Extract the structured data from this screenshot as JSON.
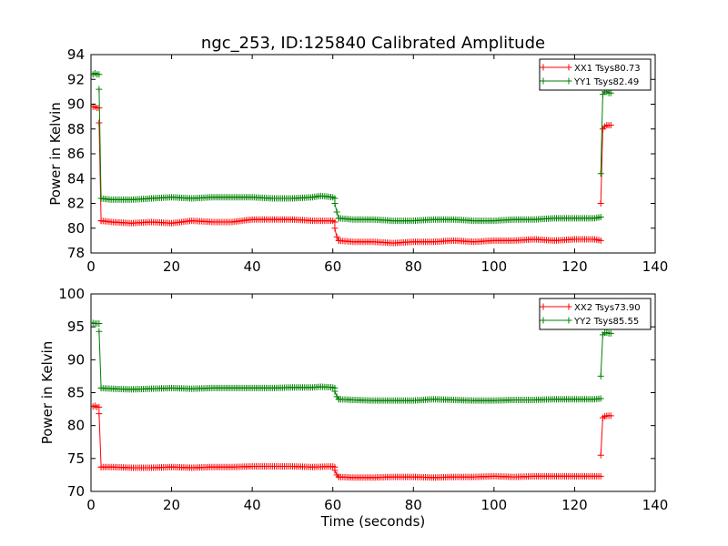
{
  "title": "ngc_253, ID:125840 Calibrated Amplitude",
  "xlabel": "Time (seconds)",
  "chart_data": [
    {
      "type": "line",
      "title": "ngc_253, ID:125840 Calibrated Amplitude",
      "xlabel": "",
      "ylabel": "Power in Kelvin",
      "xlim": [
        0,
        140
      ],
      "ylim": [
        78,
        94
      ],
      "xticks": [
        "0",
        "20",
        "40",
        "60",
        "80",
        "100",
        "120",
        "140"
      ],
      "yticks": [
        "78",
        "80",
        "82",
        "84",
        "86",
        "88",
        "90",
        "92",
        "94"
      ],
      "legend_position": "top-right",
      "grid": false,
      "series": [
        {
          "name": "XX1 Tsys80.73",
          "color": "#ff0000",
          "marker": "+",
          "segments": [
            {
              "x": [
                0.5,
                1.0,
                1.5,
                2.0
              ],
              "y": [
                89.8,
                89.8,
                89.7,
                89.7
              ]
            },
            {
              "x": [
                2.0,
                2.5
              ],
              "y": [
                88.5,
                80.6
              ]
            },
            {
              "x": [
                2.5,
                5,
                10,
                15,
                20,
                25,
                30,
                35,
                40,
                45,
                50,
                55,
                60,
                60.5
              ],
              "y": [
                80.6,
                80.5,
                80.4,
                80.5,
                80.4,
                80.6,
                80.5,
                80.5,
                80.7,
                80.7,
                80.7,
                80.6,
                80.6,
                80.5
              ]
            },
            {
              "x": [
                60.5,
                61.0,
                61.5
              ],
              "y": [
                80.0,
                79.3,
                79.0
              ]
            },
            {
              "x": [
                61.5,
                65,
                70,
                75,
                80,
                85,
                90,
                95,
                100,
                105,
                110,
                115,
                120,
                125,
                126.5
              ],
              "y": [
                79.0,
                78.9,
                78.9,
                78.8,
                78.9,
                78.9,
                79.0,
                78.9,
                79.0,
                79.0,
                79.1,
                79.0,
                79.1,
                79.1,
                79.0
              ]
            },
            {
              "x": [
                126.5,
                127.0,
                127.5,
                128.0,
                128.5,
                129.0
              ],
              "y": [
                82.0,
                88.0,
                88.2,
                88.3,
                88.3,
                88.3
              ]
            }
          ]
        },
        {
          "name": "YY1 Tsys82.49",
          "color": "#008000",
          "marker": "+",
          "segments": [
            {
              "x": [
                0.5,
                1.0,
                1.5,
                2.0
              ],
              "y": [
                92.4,
                92.5,
                92.4,
                92.4
              ]
            },
            {
              "x": [
                2.0,
                2.5
              ],
              "y": [
                91.2,
                82.4
              ]
            },
            {
              "x": [
                2.5,
                5,
                10,
                15,
                20,
                25,
                30,
                35,
                40,
                45,
                50,
                55,
                57,
                60,
                60.5
              ],
              "y": [
                82.4,
                82.3,
                82.3,
                82.4,
                82.5,
                82.4,
                82.5,
                82.5,
                82.5,
                82.4,
                82.4,
                82.5,
                82.6,
                82.5,
                82.4
              ]
            },
            {
              "x": [
                60.5,
                61.0,
                61.5
              ],
              "y": [
                82.0,
                81.3,
                80.8
              ]
            },
            {
              "x": [
                61.5,
                65,
                70,
                75,
                80,
                85,
                90,
                95,
                100,
                105,
                110,
                115,
                120,
                125,
                126.5
              ],
              "y": [
                80.8,
                80.7,
                80.7,
                80.6,
                80.6,
                80.7,
                80.7,
                80.6,
                80.6,
                80.7,
                80.7,
                80.8,
                80.8,
                80.8,
                80.9
              ]
            },
            {
              "x": [
                126.5,
                127.0,
                127.5,
                128.0,
                128.5,
                129.0
              ],
              "y": [
                84.4,
                90.8,
                91.0,
                91.0,
                90.9,
                90.9
              ]
            }
          ]
        }
      ]
    },
    {
      "type": "line",
      "title": "",
      "xlabel": "Time (seconds)",
      "ylabel": "Power in Kelvin",
      "xlim": [
        0,
        140
      ],
      "ylim": [
        70,
        100
      ],
      "xticks": [
        "0",
        "20",
        "40",
        "60",
        "80",
        "100",
        "120",
        "140"
      ],
      "yticks": [
        "70",
        "75",
        "80",
        "85",
        "90",
        "95",
        "100"
      ],
      "legend_position": "top-right",
      "grid": false,
      "series": [
        {
          "name": "XX2 Tsys73.90",
          "color": "#ff0000",
          "marker": "+",
          "segments": [
            {
              "x": [
                0.5,
                1.0,
                1.5,
                2.0
              ],
              "y": [
                82.9,
                83.0,
                82.8,
                82.8
              ]
            },
            {
              "x": [
                2.0,
                2.5
              ],
              "y": [
                81.8,
                73.7
              ]
            },
            {
              "x": [
                2.5,
                5,
                10,
                15,
                20,
                25,
                30,
                35,
                40,
                45,
                50,
                55,
                60,
                60.5
              ],
              "y": [
                73.7,
                73.7,
                73.6,
                73.6,
                73.7,
                73.6,
                73.7,
                73.7,
                73.8,
                73.8,
                73.8,
                73.7,
                73.8,
                73.7
              ]
            },
            {
              "x": [
                60.5,
                61.0,
                61.5
              ],
              "y": [
                73.2,
                72.5,
                72.2
              ]
            },
            {
              "x": [
                61.5,
                65,
                70,
                75,
                80,
                85,
                90,
                95,
                100,
                105,
                110,
                115,
                120,
                125,
                126.5
              ],
              "y": [
                72.2,
                72.1,
                72.1,
                72.2,
                72.2,
                72.1,
                72.2,
                72.2,
                72.3,
                72.2,
                72.3,
                72.3,
                72.3,
                72.3,
                72.3
              ]
            },
            {
              "x": [
                126.5,
                127.0,
                127.5,
                128.0,
                128.5,
                129.0
              ],
              "y": [
                75.5,
                81.2,
                81.4,
                81.5,
                81.5,
                81.5
              ]
            }
          ]
        },
        {
          "name": "YY2 Tsys85.55",
          "color": "#008000",
          "marker": "+",
          "segments": [
            {
              "x": [
                0.5,
                1.0,
                1.5,
                2.0
              ],
              "y": [
                95.6,
                95.5,
                95.5,
                95.5
              ]
            },
            {
              "x": [
                2.0,
                2.5
              ],
              "y": [
                94.3,
                85.7
              ]
            },
            {
              "x": [
                2.5,
                5,
                10,
                15,
                20,
                25,
                30,
                35,
                40,
                45,
                50,
                55,
                57,
                60,
                60.5
              ],
              "y": [
                85.7,
                85.6,
                85.5,
                85.6,
                85.7,
                85.6,
                85.7,
                85.7,
                85.7,
                85.7,
                85.8,
                85.8,
                85.9,
                85.8,
                85.7
              ]
            },
            {
              "x": [
                60.5,
                61.0,
                61.5
              ],
              "y": [
                85.2,
                84.4,
                84.0
              ]
            },
            {
              "x": [
                61.5,
                65,
                70,
                75,
                80,
                85,
                90,
                95,
                100,
                105,
                110,
                115,
                120,
                125,
                126.5
              ],
              "y": [
                84.0,
                83.9,
                83.8,
                83.8,
                83.8,
                84.0,
                83.9,
                83.8,
                83.8,
                83.9,
                83.9,
                84.0,
                84.0,
                84.0,
                84.1
              ]
            },
            {
              "x": [
                126.5,
                127.0,
                127.5,
                128.0,
                128.5,
                129.0
              ],
              "y": [
                87.5,
                93.8,
                94.1,
                94.1,
                94.0,
                94.0
              ]
            }
          ]
        }
      ]
    }
  ]
}
